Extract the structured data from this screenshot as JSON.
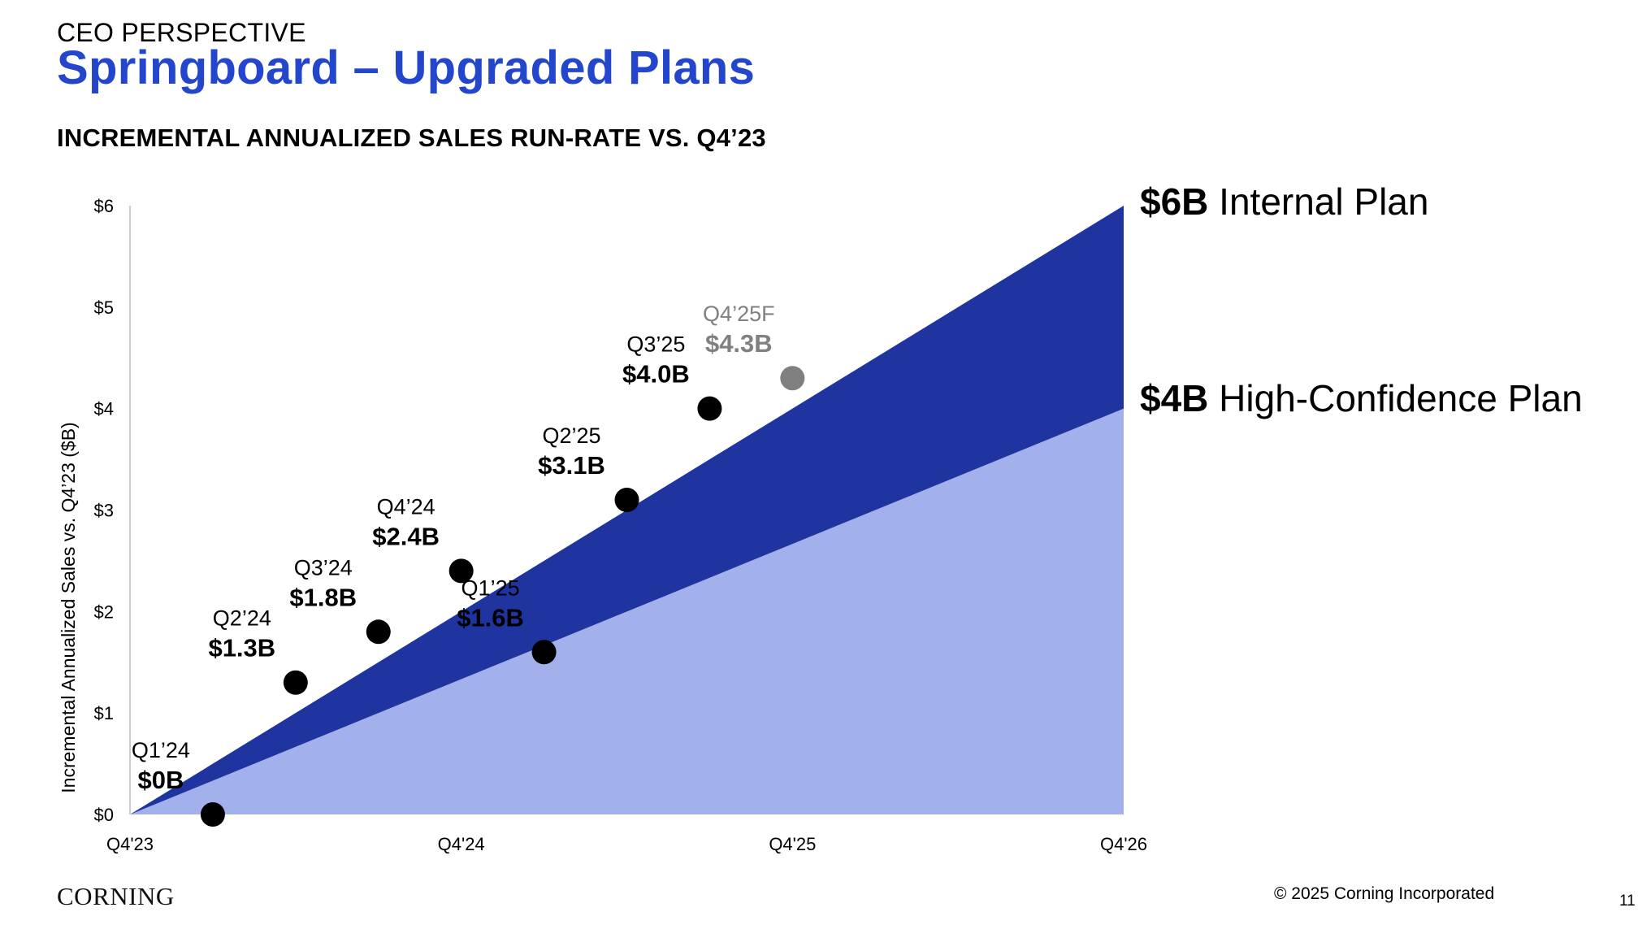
{
  "header": {
    "eyebrow": "CEO PERSPECTIVE",
    "title": "Springboard – Upgraded Plans",
    "subtitle": "INCREMENTAL ANNUALIZED SALES RUN-RATE VS. Q4’23"
  },
  "footer": {
    "logo": "CORNING",
    "copyright": "© 2025 Corning Incorporated",
    "page_number": "11"
  },
  "colors": {
    "internal_plan": "#1f349e",
    "high_confidence_plan": "#a2b1ec",
    "actual_point": "#000000",
    "forecast_point": "#808080",
    "title": "#2446cc",
    "axis": "#cccccc"
  },
  "chart_data": {
    "type": "area",
    "ylabel": "Incremental Annualized Sales vs. Q4’23 ($B)",
    "xlabel": "",
    "ylim": [
      0,
      6
    ],
    "y_ticks": [
      "$0",
      "$1",
      "$2",
      "$3",
      "$4",
      "$5",
      "$6"
    ],
    "x_ticks": [
      "Q4'23",
      "Q4'24",
      "Q4'25",
      "Q4'26"
    ],
    "series": [
      {
        "name": "Internal Plan",
        "label_value": "$6B",
        "points": [
          [
            "Q4'23",
            0
          ],
          [
            "Q4'26",
            6
          ]
        ]
      },
      {
        "name": "High-Confidence Plan",
        "label_value": "$4B",
        "points": [
          [
            "Q4'23",
            0
          ],
          [
            "Q4'26",
            4
          ]
        ]
      }
    ],
    "points": [
      {
        "quarter": "Q1’24",
        "label": "$0B",
        "value": 0.0,
        "forecast": false
      },
      {
        "quarter": "Q2’24",
        "label": "$1.3B",
        "value": 1.3,
        "forecast": false
      },
      {
        "quarter": "Q3’24",
        "label": "$1.8B",
        "value": 1.8,
        "forecast": false
      },
      {
        "quarter": "Q4’24",
        "label": "$2.4B",
        "value": 2.4,
        "forecast": false
      },
      {
        "quarter": "Q1’25",
        "label": "$1.6B",
        "value": 1.6,
        "forecast": false
      },
      {
        "quarter": "Q2’25",
        "label": "$3.1B",
        "value": 3.1,
        "forecast": false
      },
      {
        "quarter": "Q3’25",
        "label": "$4.0B",
        "value": 4.0,
        "forecast": false
      },
      {
        "quarter": "Q4’25F",
        "label": "$4.3B",
        "value": 4.3,
        "forecast": true
      }
    ]
  }
}
